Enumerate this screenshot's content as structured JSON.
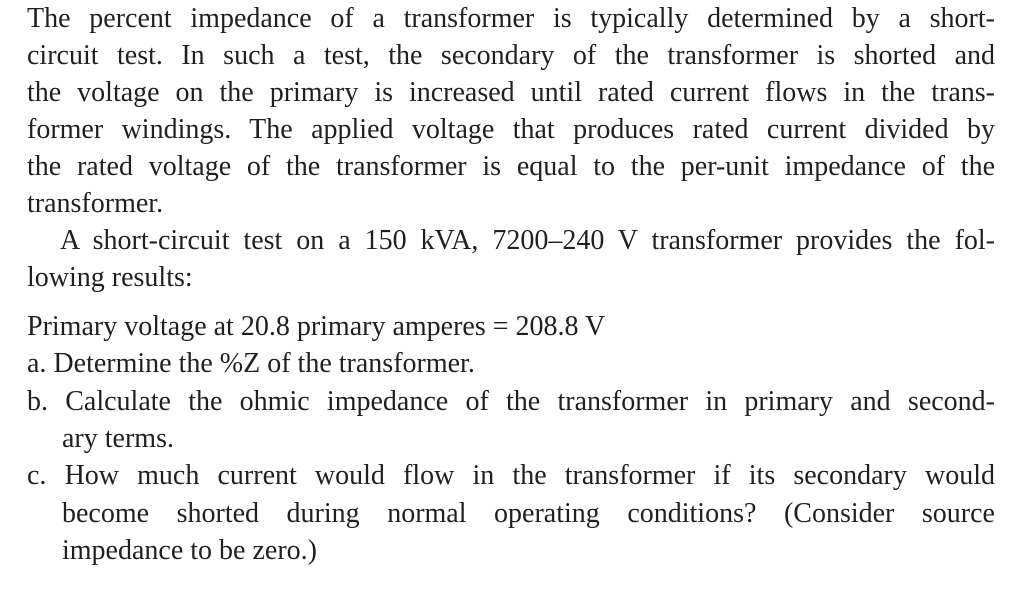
{
  "intro": {
    "lines": [
      "The percent impedance of a transformer is typically determined by a short-",
      "circuit test. In such a test, the secondary of the transformer is shorted and",
      "the voltage on the primary is increased until rated current flows in the trans-",
      "former windings. The applied voltage that produces rated current divided by",
      "the rated voltage of the transformer is equal to the per-unit impedance of the",
      "transformer."
    ]
  },
  "test": {
    "lines": [
      "A short-circuit test on a 150 kVA, 7200–240 V transformer provides the fol-",
      "lowing results:"
    ]
  },
  "result": "Primary voltage at 20.8 primary amperes = 208.8 V",
  "questions": {
    "a": [
      "a. Determine the %Z of the transformer."
    ],
    "b": [
      "b. Calculate the ohmic impedance of the transformer in primary and second-",
      "ary terms."
    ],
    "c": [
      "c. How much current would flow in the transformer if its secondary would",
      "become shorted during normal operating conditions? (Consider source",
      "impedance to be zero.)"
    ]
  }
}
